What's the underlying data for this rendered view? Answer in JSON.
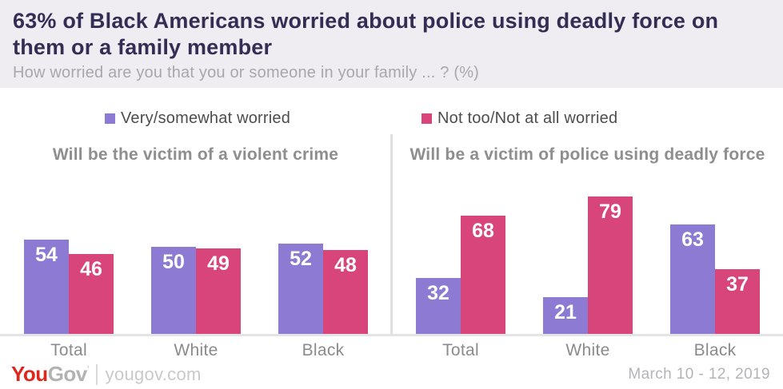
{
  "header": {
    "title": "63% of Black Americans worried about police using deadly force on them or a family member",
    "subtitle": "How worried are you that you or someone in your family ... ? (%)"
  },
  "legend": {
    "items": [
      {
        "label": "Very/somewhat worried",
        "color": "#8d7ad2"
      },
      {
        "label": "Not too/Not at all worried",
        "color": "#d7457b"
      }
    ]
  },
  "chart_data": [
    {
      "type": "bar",
      "title": "Will be the victim of a violent crime",
      "categories": [
        "Total",
        "White",
        "Black"
      ],
      "series": [
        {
          "name": "Very/somewhat worried",
          "color": "#8d7ad2",
          "values": [
            54,
            50,
            52
          ]
        },
        {
          "name": "Not too/Not at all worried",
          "color": "#d7457b",
          "values": [
            46,
            49,
            48
          ]
        }
      ],
      "ylim": [
        0,
        100
      ],
      "unit": "%",
      "grid": false,
      "value_labels": "inside-top"
    },
    {
      "type": "bar",
      "title": "Will be a victim of police using deadly force",
      "categories": [
        "Total",
        "White",
        "Black"
      ],
      "series": [
        {
          "name": "Very/somewhat worried",
          "color": "#8d7ad2",
          "values": [
            32,
            21,
            63
          ]
        },
        {
          "name": "Not too/Not at all worried",
          "color": "#d7457b",
          "values": [
            68,
            79,
            37
          ]
        }
      ],
      "ylim": [
        0,
        100
      ],
      "unit": "%",
      "grid": false,
      "value_labels": "inside-top"
    }
  ],
  "footer": {
    "logo_you": "You",
    "logo_gov": "Gov",
    "logo_mark": "’",
    "site": "yougov.com",
    "date": "March 10 - 12, 2019",
    "logo_red": "#e0261c"
  },
  "colors": {
    "header_bg": "#efedf2",
    "title_text": "#342e55",
    "accent_purple": "#8d7ad2",
    "accent_pink": "#d7457b"
  }
}
